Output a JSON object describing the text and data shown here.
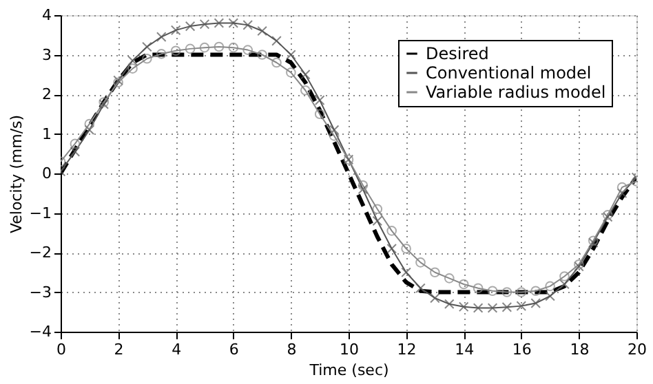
{
  "chart_data": {
    "type": "line",
    "xlabel": "Time (sec)",
    "ylabel": "Velocity (mm/s)",
    "x": [
      0,
      0.5,
      1,
      1.5,
      2,
      2.5,
      3,
      3.5,
      4,
      4.5,
      5,
      5.5,
      6,
      6.5,
      7,
      7.5,
      8,
      8.5,
      9,
      9.5,
      10,
      10.5,
      11,
      11.5,
      12,
      12.5,
      13,
      13.5,
      14,
      14.5,
      15,
      15.5,
      16,
      16.5,
      17,
      17.5,
      18,
      18.5,
      19,
      19.5,
      20
    ],
    "xlim": [
      0,
      20
    ],
    "xticks": [
      0,
      2,
      4,
      6,
      8,
      10,
      12,
      14,
      16,
      18,
      20
    ],
    "ylim": [
      -4,
      4
    ],
    "yticks": [
      -4,
      -3,
      -2,
      -1,
      0,
      1,
      2,
      3,
      4
    ],
    "grid": true,
    "legend": "top right",
    "series": [
      {
        "name": "Desired",
        "color": "#000000",
        "line_style": "dashed",
        "marker": "none",
        "values": [
          0,
          0.6,
          1.2,
          1.8,
          2.35,
          2.8,
          3.0,
          3.0,
          3.0,
          3.0,
          3.0,
          3.0,
          3.0,
          3.0,
          3.0,
          3.0,
          2.8,
          2.3,
          1.6,
          0.8,
          0,
          -0.8,
          -1.6,
          -2.3,
          -2.75,
          -2.97,
          -3.0,
          -3.0,
          -3.0,
          -3.0,
          -3.0,
          -3.0,
          -3.0,
          -3.0,
          -3.0,
          -2.85,
          -2.5,
          -1.9,
          -1.2,
          -0.6,
          -0.1
        ]
      },
      {
        "name": "Conventional model",
        "color": "#555555",
        "line_style": "solid",
        "marker": "cross",
        "values": [
          0.05,
          0.55,
          1.1,
          1.75,
          2.35,
          2.85,
          3.2,
          3.45,
          3.62,
          3.72,
          3.77,
          3.8,
          3.8,
          3.75,
          3.6,
          3.35,
          3.0,
          2.5,
          1.85,
          1.1,
          0.35,
          -0.4,
          -1.2,
          -1.9,
          -2.5,
          -2.9,
          -3.15,
          -3.3,
          -3.37,
          -3.4,
          -3.4,
          -3.38,
          -3.35,
          -3.28,
          -3.1,
          -2.8,
          -2.35,
          -1.75,
          -1.1,
          -0.5,
          -0.1
        ]
      },
      {
        "name": "Variable radius model",
        "color": "#888888",
        "line_style": "solid",
        "marker": "circle",
        "values": [
          0.3,
          0.75,
          1.25,
          1.8,
          2.3,
          2.65,
          2.9,
          3.02,
          3.1,
          3.15,
          3.18,
          3.2,
          3.18,
          3.12,
          3.0,
          2.8,
          2.55,
          2.1,
          1.5,
          0.95,
          0.35,
          -0.3,
          -0.9,
          -1.45,
          -1.9,
          -2.25,
          -2.5,
          -2.65,
          -2.8,
          -2.9,
          -2.97,
          -3.0,
          -3.0,
          -2.97,
          -2.85,
          -2.6,
          -2.3,
          -1.7,
          -1.05,
          -0.35,
          -0.2
        ]
      }
    ]
  }
}
